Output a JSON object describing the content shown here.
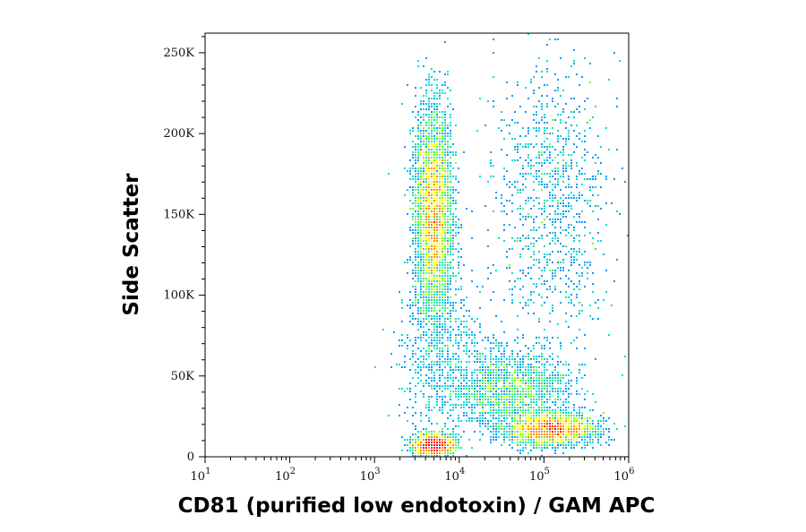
{
  "chart_data": {
    "type": "scatter",
    "title": "",
    "xlabel": "CD81 (purified low endotoxin) / GAM APC",
    "ylabel": "Side Scatter",
    "x_scale": "log",
    "xlim": [
      10,
      1000000
    ],
    "ylim": [
      0,
      262144
    ],
    "x_ticks": [
      {
        "value": 10,
        "base": "10",
        "exp": "1"
      },
      {
        "value": 100,
        "base": "10",
        "exp": "2"
      },
      {
        "value": 1000,
        "base": "10",
        "exp": "3"
      },
      {
        "value": 10000,
        "base": "10",
        "exp": "4"
      },
      {
        "value": 100000,
        "base": "10",
        "exp": "5"
      },
      {
        "value": 1000000,
        "base": "10",
        "exp": "6"
      }
    ],
    "y_ticks": [
      {
        "value": 0,
        "label": "0"
      },
      {
        "value": 50000,
        "label": "50K"
      },
      {
        "value": 100000,
        "label": "100K"
      },
      {
        "value": 150000,
        "label": "150K"
      },
      {
        "value": 200000,
        "label": "200K"
      },
      {
        "value": 250000,
        "label": "250K"
      }
    ],
    "color_scale": [
      "#0000cc",
      "#0099ff",
      "#00ddcc",
      "#66ff33",
      "#ffff00",
      "#ff8800",
      "#ff0000"
    ],
    "populations": [
      {
        "x_center": 5000,
        "x_log_sd": 0.11,
        "y_center": 150000,
        "y_sd": 32000,
        "weight": 0.37
      },
      {
        "x_center": 5000,
        "x_log_sd": 0.12,
        "y_center": 7000,
        "y_sd": 3500,
        "weight": 0.14
      },
      {
        "x_center": 120000,
        "x_log_sd": 0.25,
        "y_center": 17000,
        "y_sd": 5000,
        "weight": 0.22
      },
      {
        "x_center": 40000,
        "x_log_sd": 0.35,
        "y_center": 42000,
        "y_sd": 11000,
        "weight": 0.13
      },
      {
        "x_center": 120000,
        "x_log_sd": 0.32,
        "y_center": 155000,
        "y_sd": 45000,
        "weight": 0.09
      },
      {
        "x_center": 7000,
        "x_log_sd": 0.3,
        "y_center": 60000,
        "y_sd": 25000,
        "weight": 0.05
      }
    ]
  }
}
